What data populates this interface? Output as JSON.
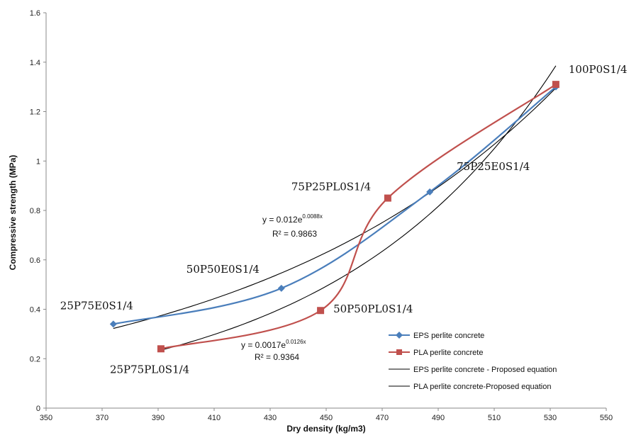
{
  "chart_data": {
    "type": "scatter",
    "xlabel": "Dry density (kg/m3)",
    "ylabel": "Compressive strength (MPa)",
    "xlim": [
      350,
      550
    ],
    "ylim": [
      0,
      1.6
    ],
    "xticks": [
      "350",
      "370",
      "390",
      "410",
      "430",
      "450",
      "470",
      "490",
      "510",
      "530",
      "550"
    ],
    "yticks": [
      "0",
      "0.2",
      "0.4",
      "0.6",
      "0.8",
      "1",
      "1.2",
      "1.4",
      "1.6"
    ],
    "grid": false,
    "legend_position": "bottom-right",
    "series": [
      {
        "name": "EPS perlite concrete",
        "color": "#4a7ebb",
        "marker": "diamond",
        "x": [
          374,
          434,
          487,
          532
        ],
        "y": [
          0.34,
          0.485,
          0.875,
          1.3
        ],
        "labels": [
          "25P75E0S1/4",
          "50P50E0S1/4",
          "75P25E0S1/4",
          "100P0S1/4"
        ]
      },
      {
        "name": "PLA perlite concrete",
        "color": "#c0504d",
        "marker": "square",
        "x": [
          391,
          448,
          472,
          532
        ],
        "y": [
          0.24,
          0.395,
          0.85,
          1.31
        ],
        "labels": [
          "25P75PL0S1/4",
          "50P50PL0S1/4",
          "75P25PL0S1/4",
          "100P0S1/4"
        ]
      },
      {
        "name": "EPS perlite concrete - Proposed equation",
        "color": "#000000",
        "fit": {
          "a": 0.012,
          "b": 0.0088,
          "x_range": [
            374,
            532
          ]
        }
      },
      {
        "name": "PLA perlite concrete-Proposed equation",
        "color": "#000000",
        "fit": {
          "a": 0.0017,
          "b": 0.0126,
          "x_range": [
            391,
            532
          ]
        }
      }
    ],
    "annotations": {
      "eps_eq_main": "y = 0.012e",
      "eps_eq_exp": "0.0088x",
      "eps_r2": "R² = 0.9863",
      "pla_eq_main": "y = 0.0017e",
      "pla_eq_exp": "0.0126x",
      "pla_r2": "R² = 0.9364"
    }
  }
}
